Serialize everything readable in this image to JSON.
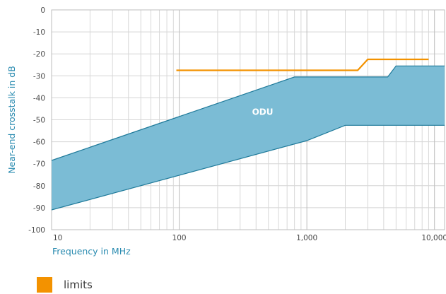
{
  "chart_data": {
    "type": "area",
    "ylabel": "Near-end crosstalk in dB",
    "xlabel": "Frequency in MHz",
    "x_scale": "log",
    "xlim": [
      10,
      12000
    ],
    "ylim": [
      -100,
      0
    ],
    "grid": true,
    "y_ticks": [
      0,
      -10,
      -20,
      -30,
      -40,
      -50,
      -60,
      -70,
      -80,
      -90,
      -100
    ],
    "x_ticks": [
      {
        "value": 10,
        "label": "10"
      },
      {
        "value": 100,
        "label": "100"
      },
      {
        "value": 1000,
        "label": "1,000"
      },
      {
        "value": 10000,
        "label": "10,000"
      }
    ],
    "band": {
      "name": "ODU",
      "color": "#7bbcd5",
      "edge_color": "#1f7a9a",
      "upper": [
        [
          10,
          -68.5
        ],
        [
          800,
          -30.5
        ],
        [
          4300,
          -30.5
        ],
        [
          5000,
          -25.5
        ],
        [
          12000,
          -25.5
        ]
      ],
      "lower": [
        [
          10,
          -91
        ],
        [
          1000,
          -59.5
        ],
        [
          2000,
          -52.5
        ],
        [
          12000,
          -52.5
        ]
      ]
    },
    "series": [
      {
        "name": "limits",
        "color": "#f39200",
        "x": [
          95,
          2500,
          3000,
          9000
        ],
        "y": [
          -27.5,
          -27.5,
          -22.5,
          -22.5
        ]
      }
    ],
    "legend": {
      "placement": "bottom-left"
    }
  }
}
